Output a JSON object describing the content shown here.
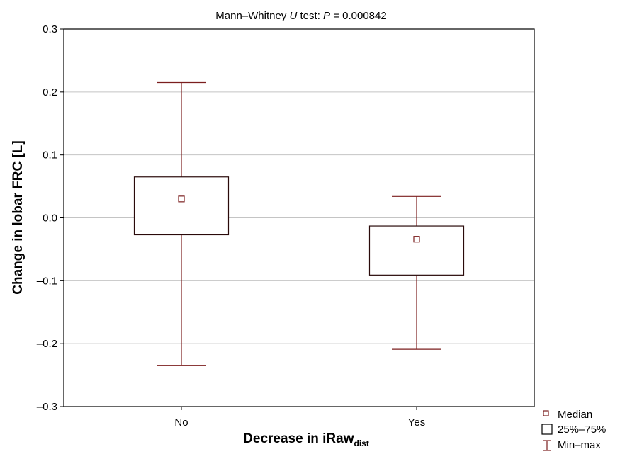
{
  "chart_data": {
    "type": "box",
    "title_prefix": "Mann–Whitney ",
    "title_italic_u": "U",
    "title_mid": " test: ",
    "title_italic_p": "P",
    "title_suffix": " = 0.000842",
    "xlabel": "Decrease in iRaw",
    "xlabel_sub": "dist",
    "ylabel": "Change in lobar FRC [L]",
    "ylim": [
      -0.3,
      0.3
    ],
    "yticks": [
      0.3,
      0.2,
      0.1,
      0.0,
      -0.1,
      -0.2,
      -0.3
    ],
    "ytick_labels": [
      "0.3",
      "0.2",
      "0.1",
      "0.0",
      "–0.1",
      "–0.2",
      "–0.3"
    ],
    "categories": [
      "No",
      "Yes"
    ],
    "boxes": [
      {
        "category": "No",
        "min": -0.235,
        "q1": -0.027,
        "median": 0.03,
        "q3": 0.065,
        "max": 0.215
      },
      {
        "category": "Yes",
        "min": -0.209,
        "q1": -0.091,
        "median": -0.034,
        "q3": -0.013,
        "max": 0.034
      }
    ],
    "grid": true,
    "color": "#7b1e1e",
    "legend_position": "bottom-right",
    "legend": [
      {
        "symbol": "square-marker",
        "label": "Median"
      },
      {
        "symbol": "box",
        "label": "25%–75%"
      },
      {
        "symbol": "whisker",
        "label": "Min–max"
      }
    ]
  }
}
